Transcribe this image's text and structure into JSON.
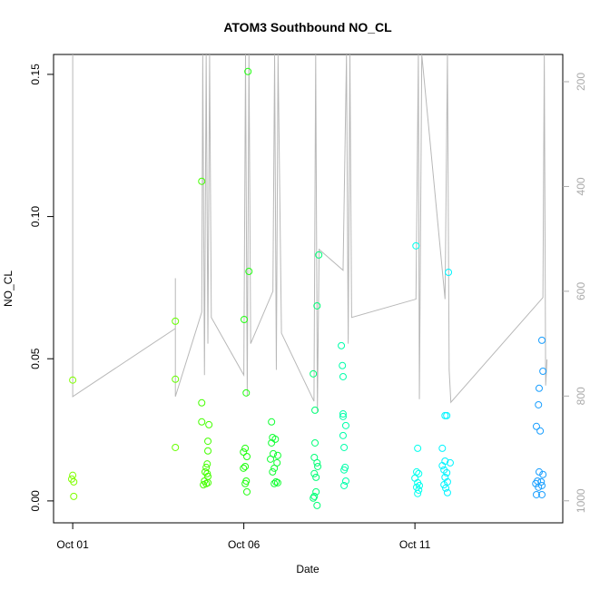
{
  "chart_data": {
    "type": "scatter",
    "title": "ATOM3 Southbound NO_CL",
    "x_label": "Date",
    "y_label": "NO_CL",
    "xlim": [
      -0.56,
      14.32
    ],
    "ylim": [
      -0.0077,
      0.157
    ],
    "y2lim": [
      1042,
      148
    ],
    "xticks": [
      {
        "value": 0,
        "label": "Oct 01"
      },
      {
        "value": 5,
        "label": "Oct 06"
      },
      {
        "value": 10,
        "label": "Oct 11"
      }
    ],
    "yticks": [
      {
        "value": 0,
        "label": "0.00"
      },
      {
        "value": 0.05,
        "label": "0.05"
      },
      {
        "value": 0.1,
        "label": "0.10"
      },
      {
        "value": 0.15,
        "label": "0.15"
      }
    ],
    "y2ticks": [
      200,
      400,
      600,
      800,
      1000
    ],
    "series": [
      {
        "color": "#b8b8b8",
        "axis": "y2",
        "type": "line",
        "x": [
          0,
          0,
          3.0,
          3.0,
          3.0,
          3.77,
          3.8,
          3.85,
          3.9,
          3.95,
          4.0,
          4.05,
          5.0,
          5.05,
          5.1,
          5.15,
          5.2,
          5.85,
          5.9,
          5.95,
          6.0,
          6.1,
          7.05,
          7.1,
          7.15,
          7.2,
          7.9,
          8.0,
          8.05,
          8.1,
          8.15,
          10.03,
          10.1,
          10.13,
          10.2,
          10.88,
          10.95,
          11.0,
          11.05,
          13.74,
          13.78,
          13.82,
          13.86
        ],
        "values": [
          148,
          801,
          671,
          575,
          801,
          640,
          148,
          760,
          148,
          700,
          148,
          650,
          760,
          148,
          800,
          148,
          700,
          600,
          148,
          750,
          148,
          680,
          810,
          148,
          830,
          520,
          560,
          148,
          700,
          148,
          650,
          615,
          148,
          806,
          148,
          615,
          148,
          750,
          812,
          612,
          148,
          780,
          730
        ]
      },
      {
        "color": "#80ff00",
        "x": [
          0,
          0,
          -0.03,
          0.03,
          0.03
        ],
        "values": [
          0.0425,
          0.009,
          0.0077,
          0.0067,
          0.0016
        ]
      },
      {
        "color": "#66ff00",
        "x": [
          3.0,
          3.0,
          3.0
        ],
        "values": [
          0.0632,
          0.0428,
          0.0188
        ]
      },
      {
        "color": "#44ff00",
        "x": [
          3.77,
          3.77,
          3.77,
          3.98,
          3.95,
          3.95,
          3.93,
          3.9,
          3.87,
          3.93,
          3.95,
          3.85,
          3.9,
          3.82,
          3.95
        ],
        "values": [
          0.1124,
          0.0345,
          0.0278,
          0.0268,
          0.021,
          0.0176,
          0.013,
          0.0118,
          0.0102,
          0.0096,
          0.0086,
          0.007,
          0.0061,
          0.0057,
          0.0064
        ]
      },
      {
        "color": "#22ff11",
        "x": [
          5.12,
          5.15,
          5.01,
          5.07,
          5.04,
          4.99,
          5.09,
          5.04,
          4.99,
          5.07,
          5.04,
          5.09
        ],
        "values": [
          0.151,
          0.0807,
          0.0638,
          0.038,
          0.0185,
          0.0172,
          0.0156,
          0.0121,
          0.0115,
          0.007,
          0.0061,
          0.0032
        ]
      },
      {
        "color": "#11ff33",
        "x": [
          5.81,
          5.84,
          5.92,
          5.81,
          5.86,
          5.99,
          5.78,
          5.97,
          5.89,
          5.84,
          5.94,
          5.89,
          5.99
        ],
        "values": [
          0.0278,
          0.0223,
          0.0217,
          0.0204,
          0.0166,
          0.016,
          0.0147,
          0.0134,
          0.0115,
          0.0102,
          0.0067,
          0.0061,
          0.0064
        ]
      },
      {
        "color": "#00ff77",
        "x": [
          7.19,
          7.14,
          7.03,
          7.08,
          7.08,
          7.06,
          7.14,
          7.16,
          7.06,
          7.11,
          7.03,
          7.14,
          7.06,
          7.11
        ],
        "values": [
          0.0865,
          0.0686,
          0.0447,
          0.0319,
          0.0204,
          0.0153,
          0.0134,
          0.0121,
          0.0096,
          0.0083,
          0.001,
          -0.0016,
          0.0016,
          0.0032
        ]
      },
      {
        "color": "#00ffaa",
        "x": [
          7.85,
          7.88,
          7.9,
          7.9,
          7.9,
          7.98,
          7.9,
          7.93,
          7.96,
          7.93,
          7.98,
          7.93
        ],
        "values": [
          0.0546,
          0.0476,
          0.0437,
          0.0306,
          0.0297,
          0.0265,
          0.023,
          0.0188,
          0.0118,
          0.0109,
          0.007,
          0.0054
        ]
      },
      {
        "color": "#00ffee",
        "x": [
          10.03,
          10.08,
          10.05,
          10.11,
          10.0,
          10.08,
          10.05,
          10.11,
          10.08,
          10.13
        ],
        "values": [
          0.0897,
          0.0185,
          0.0102,
          0.0096,
          0.008,
          0.0064,
          0.0048,
          0.0038,
          0.0026,
          0.0054
        ]
      },
      {
        "color": "#00f4ff",
        "x": [
          10.98,
          10.88,
          10.93,
          10.8,
          10.88,
          11.03,
          10.8,
          10.85,
          10.93,
          10.88,
          10.95,
          10.85,
          10.9,
          10.95
        ],
        "values": [
          0.0804,
          0.03,
          0.03,
          0.0185,
          0.014,
          0.0134,
          0.0124,
          0.0109,
          0.0099,
          0.0083,
          0.0067,
          0.0057,
          0.0045,
          0.0029
        ]
      },
      {
        "color": "#1a9fff",
        "x": [
          13.71,
          13.74,
          13.63,
          13.61,
          13.55,
          13.66,
          13.63,
          13.74,
          13.58,
          13.69,
          13.53,
          13.71,
          13.61,
          13.55,
          13.71
        ],
        "values": [
          0.0565,
          0.0456,
          0.0396,
          0.0338,
          0.0262,
          0.0246,
          0.0102,
          0.0093,
          0.007,
          0.0067,
          0.0061,
          0.0054,
          0.0048,
          0.0022,
          0.0022
        ]
      }
    ]
  }
}
